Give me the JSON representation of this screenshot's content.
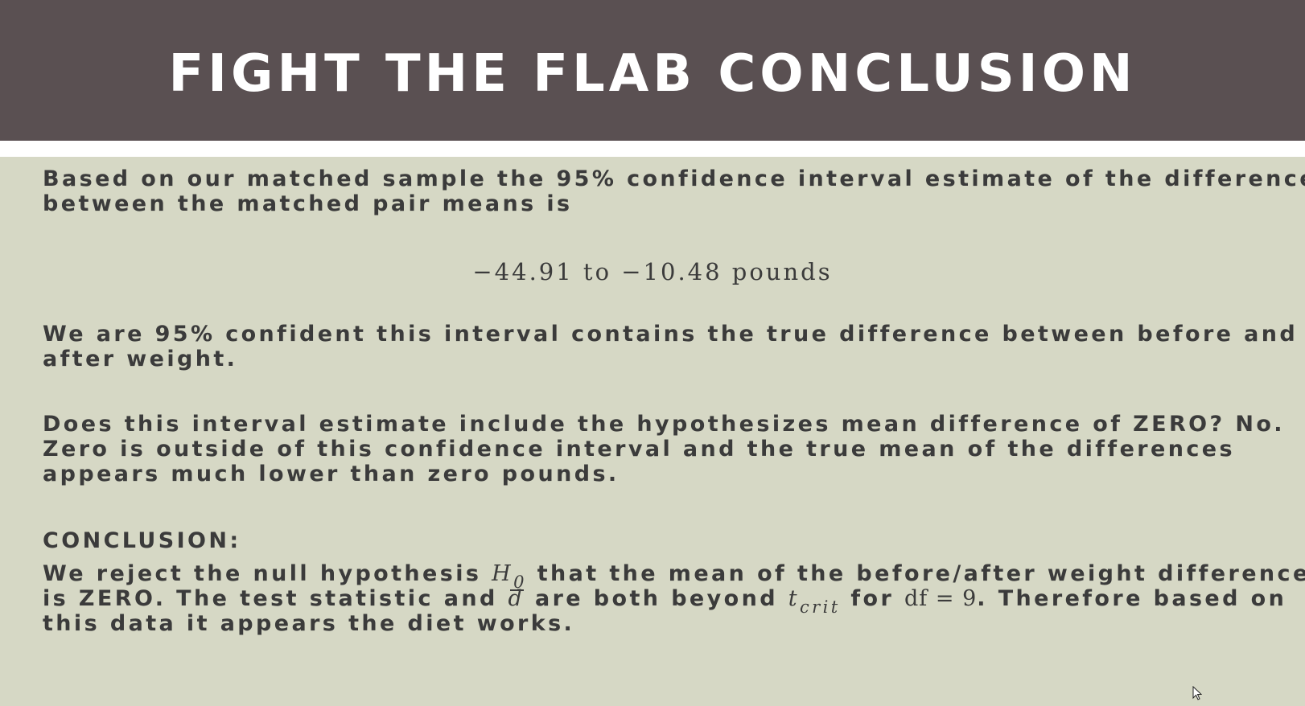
{
  "header": {
    "title": "FIGHT THE FLAB CONCLUSION"
  },
  "paragraphs": {
    "p1_line1": "Based on our matched sample the 95% confidence interval estimate of the difference",
    "p1_line2": "between the matched pair means is",
    "interval": "−44.91 to −10.48 pounds",
    "p2_line1": "We are 95% confident this interval contains the true difference between before and",
    "p2_line2": "after weight.",
    "p3_line1": "Does this interval estimate include the hypothesizes mean difference of ZERO? No.",
    "p3_line2": "Zero is outside of this confidence interval and the true mean of the differences",
    "p3_line3": "appears much lower than zero pounds.",
    "conclusion_heading": "CONCLUSION:",
    "c_line1_a": "We reject the null hypothesis ",
    "c_H": "H",
    "c_H_sub": "0",
    "c_line1_b": " that the mean of the before/after weight differences",
    "c_line2_a": "is ZERO. The test statistic and ",
    "c_d": "d",
    "c_line2_b": " are both beyond ",
    "c_t": "t",
    "c_t_sub": "crit",
    "c_line2_c": " for ",
    "c_df": "df = 9",
    "c_line2_d": ". Therefore based on",
    "c_line3": "this data it appears the diet works."
  },
  "colors": {
    "header_bg": "#5a5052",
    "content_bg": "#d6d8c5",
    "text": "#3b3b3b",
    "title_text": "#ffffff"
  }
}
